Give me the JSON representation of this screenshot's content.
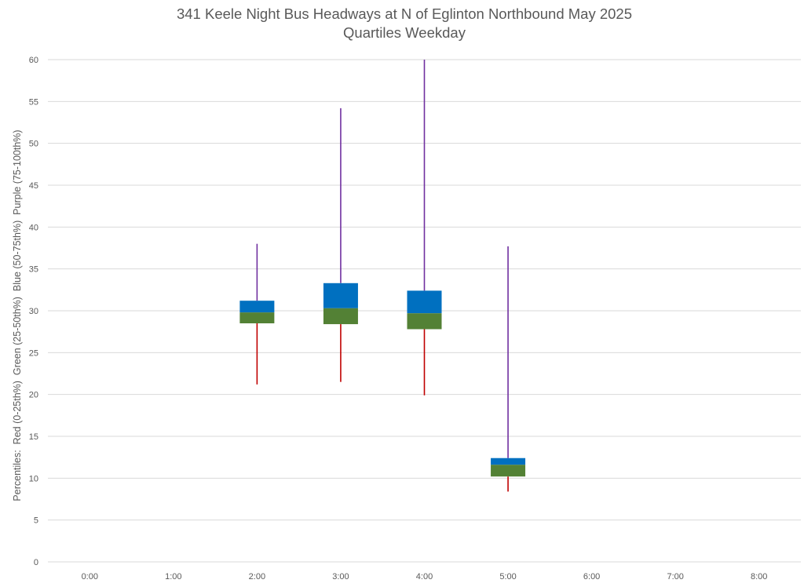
{
  "chart_data": {
    "type": "box",
    "title": "341 Keele Night Bus Headways at N of Eglinton Northbound May 2025",
    "subtitle": "Quartiles Weekday",
    "ylabel": "Percentiles:  Red (0-25th%)  Green (25-50th%)  Blue (50-75th%)  Purple (75-100th%)",
    "xlabel": "",
    "ylim": [
      0,
      60
    ],
    "yticks": [
      0,
      5,
      10,
      15,
      20,
      25,
      30,
      35,
      40,
      45,
      50,
      55,
      60
    ],
    "categories": [
      "0:00",
      "1:00",
      "2:00",
      "3:00",
      "4:00",
      "5:00",
      "6:00",
      "7:00",
      "8:00"
    ],
    "grid": true,
    "colors": {
      "min_to_q1": "#c00000",
      "q1_to_median": "#538135",
      "median_to_q3": "#0070c0",
      "q3_to_max": "#7030a0",
      "grid": "#d9d9d9",
      "text": "#595959"
    },
    "series": [
      {
        "category": "2:00",
        "min": 21.2,
        "q1": 28.5,
        "median": 29.8,
        "q3": 31.2,
        "max": 38.0
      },
      {
        "category": "3:00",
        "min": 21.5,
        "q1": 28.4,
        "median": 30.3,
        "q3": 33.3,
        "max": 54.2
      },
      {
        "category": "4:00",
        "min": 19.9,
        "q1": 27.8,
        "median": 29.7,
        "q3": 32.4,
        "max": 60.0
      },
      {
        "category": "5:00",
        "min": 8.4,
        "q1": 10.2,
        "median": 11.6,
        "q3": 12.4,
        "max": 37.7
      }
    ]
  }
}
